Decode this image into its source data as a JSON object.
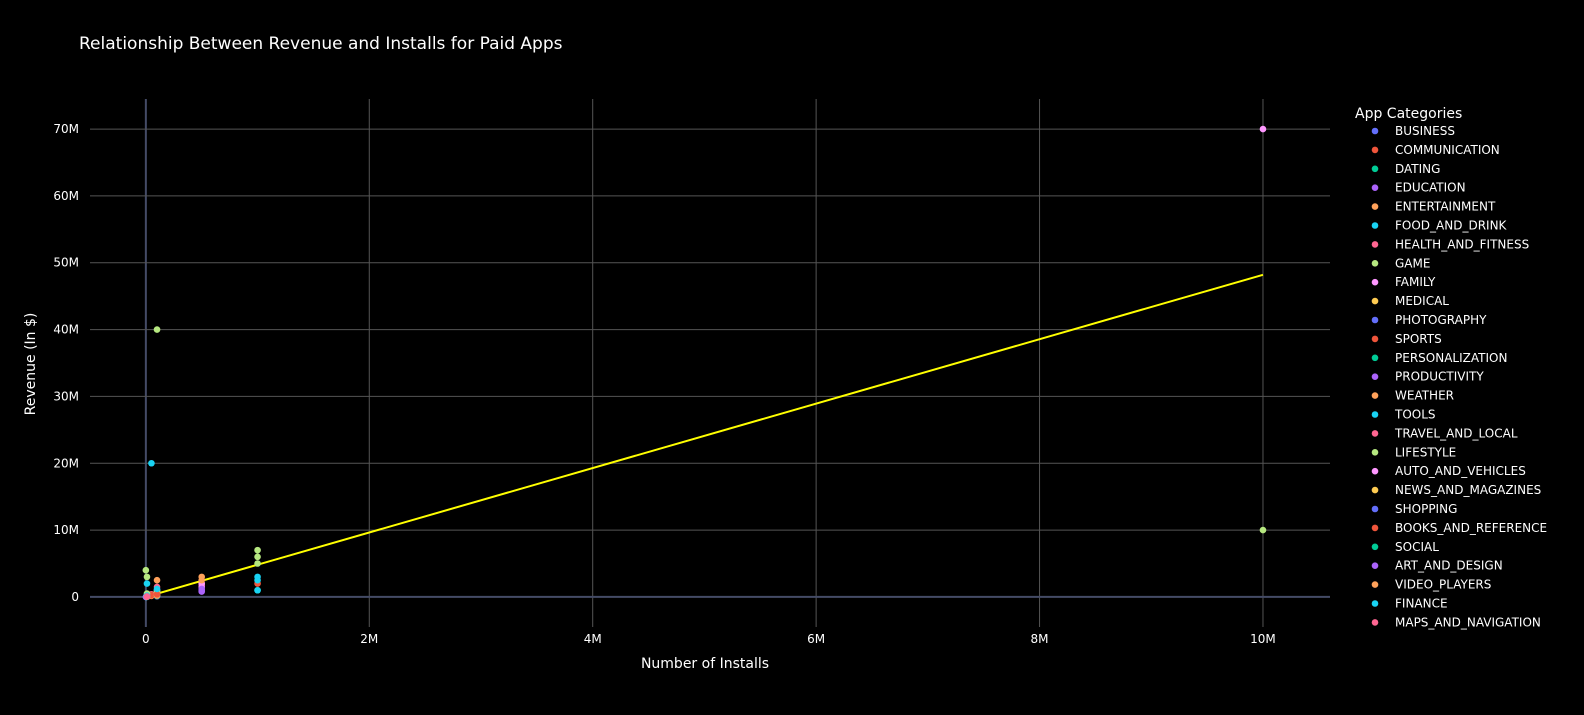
{
  "chart_data": {
    "type": "scatter",
    "title": "Relationship Between Revenue and Installs for Paid Apps",
    "xlabel": "Number of Installs",
    "ylabel": "Revenue (In $)",
    "xlim": [
      -500000,
      10600000
    ],
    "ylim": [
      -4500000,
      74500000
    ],
    "x_ticks": [
      {
        "value": 0,
        "label": "0"
      },
      {
        "value": 2000000,
        "label": "2M"
      },
      {
        "value": 4000000,
        "label": "4M"
      },
      {
        "value": 6000000,
        "label": "6M"
      },
      {
        "value": 8000000,
        "label": "8M"
      },
      {
        "value": 10000000,
        "label": "10M"
      }
    ],
    "y_ticks": [
      {
        "value": 0,
        "label": "0"
      },
      {
        "value": 10000000,
        "label": "10M"
      },
      {
        "value": 20000000,
        "label": "20M"
      },
      {
        "value": 30000000,
        "label": "30M"
      },
      {
        "value": 40000000,
        "label": "40M"
      },
      {
        "value": 50000000,
        "label": "50M"
      },
      {
        "value": 60000000,
        "label": "60M"
      },
      {
        "value": 70000000,
        "label": "70M"
      }
    ],
    "grid": true,
    "legend_title": "App Categories",
    "legend_position": "right",
    "background": "#000000",
    "grid_color": "#555555",
    "trendline": {
      "color": "#ffff00",
      "x": [
        0,
        10000000
      ],
      "y": [
        0,
        48200000
      ]
    },
    "series": [
      {
        "name": "BUSINESS",
        "color": "#636efa",
        "points": [
          [
            1000,
            5000
          ],
          [
            10000,
            40000
          ],
          [
            100000,
            300000
          ]
        ]
      },
      {
        "name": "COMMUNICATION",
        "color": "#ef553b",
        "points": [
          [
            10000,
            30000
          ],
          [
            50000,
            150000
          ],
          [
            100000,
            500000
          ]
        ]
      },
      {
        "name": "DATING",
        "color": "#00cc96",
        "points": [
          [
            1000,
            3000
          ],
          [
            10000,
            50000
          ]
        ]
      },
      {
        "name": "EDUCATION",
        "color": "#ab63fa",
        "points": [
          [
            10000,
            40000
          ],
          [
            100000,
            200000
          ],
          [
            500000,
            1000000
          ]
        ]
      },
      {
        "name": "ENTERTAINMENT",
        "color": "#ffa15a",
        "points": [
          [
            100000,
            2500000
          ],
          [
            500000,
            3000000
          ]
        ]
      },
      {
        "name": "FOOD_AND_DRINK",
        "color": "#19d3f3",
        "points": [
          [
            10000,
            20000
          ],
          [
            100000,
            300000
          ]
        ]
      },
      {
        "name": "HEALTH_AND_FITNESS",
        "color": "#ff6692",
        "points": [
          [
            50000,
            400000
          ],
          [
            100000,
            1500000
          ],
          [
            500000,
            1800000
          ]
        ]
      },
      {
        "name": "GAME",
        "color": "#b6e880",
        "points": [
          [
            0,
            4000000
          ],
          [
            10000,
            3000000
          ],
          [
            100000,
            40000000
          ],
          [
            1000000,
            7000000
          ],
          [
            1000000,
            6000000
          ],
          [
            1000000,
            5000000
          ],
          [
            10000000,
            10000000
          ]
        ]
      },
      {
        "name": "FAMILY",
        "color": "#ff97ff",
        "points": [
          [
            100000,
            1000000
          ],
          [
            500000,
            1500000
          ],
          [
            500000,
            2000000
          ],
          [
            10000000,
            70000000
          ]
        ]
      },
      {
        "name": "MEDICAL",
        "color": "#fecb52",
        "points": [
          [
            10000,
            100000
          ],
          [
            50000,
            250000
          ],
          [
            100000,
            800000
          ]
        ]
      },
      {
        "name": "PHOTOGRAPHY",
        "color": "#636efa",
        "points": [
          [
            10000,
            150000
          ],
          [
            100000,
            100000
          ]
        ]
      },
      {
        "name": "SPORTS",
        "color": "#ef553b",
        "points": [
          [
            50000,
            300000
          ],
          [
            1000000,
            2000000
          ]
        ]
      },
      {
        "name": "PERSONALIZATION",
        "color": "#00cc96",
        "points": [
          [
            10000,
            10000
          ],
          [
            100000,
            150000
          ],
          [
            1000000,
            1000000
          ]
        ]
      },
      {
        "name": "PRODUCTIVITY",
        "color": "#ab63fa",
        "points": [
          [
            100000,
            600000
          ],
          [
            500000,
            800000
          ],
          [
            500000,
            1200000
          ]
        ]
      },
      {
        "name": "WEATHER",
        "color": "#ffa15a",
        "points": [
          [
            100000,
            200000
          ],
          [
            500000,
            2500000
          ]
        ]
      },
      {
        "name": "TOOLS",
        "color": "#19d3f3",
        "points": [
          [
            10000,
            2000000
          ],
          [
            100000,
            1000000
          ],
          [
            1000000,
            3000000
          ],
          [
            1000000,
            2500000
          ]
        ]
      },
      {
        "name": "TRAVEL_AND_LOCAL",
        "color": "#ff6692",
        "points": [
          [
            10000,
            50000
          ],
          [
            100000,
            500000
          ]
        ]
      },
      {
        "name": "LIFESTYLE",
        "color": "#b6e880",
        "points": [
          [
            10000,
            500000
          ],
          [
            100000,
            700000
          ]
        ]
      },
      {
        "name": "AUTO_AND_VEHICLES",
        "color": "#ff97ff",
        "points": [
          [
            10000,
            20000
          ]
        ]
      },
      {
        "name": "NEWS_AND_MAGAZINES",
        "color": "#fecb52",
        "points": [
          [
            10000,
            60000
          ]
        ]
      },
      {
        "name": "SHOPPING",
        "color": "#636efa",
        "points": [
          [
            10000,
            80000
          ]
        ]
      },
      {
        "name": "BOOKS_AND_REFERENCE",
        "color": "#ef553b",
        "points": [
          [
            10000,
            100000
          ],
          [
            100000,
            400000
          ]
        ]
      },
      {
        "name": "SOCIAL",
        "color": "#00cc96",
        "points": [
          [
            1000,
            2000
          ],
          [
            10000,
            30000
          ]
        ]
      },
      {
        "name": "ART_AND_DESIGN",
        "color": "#ab63fa",
        "points": [
          [
            1000,
            5000
          ]
        ]
      },
      {
        "name": "VIDEO_PLAYERS",
        "color": "#ffa15a",
        "points": [
          [
            10000,
            40000
          ]
        ]
      },
      {
        "name": "FINANCE",
        "color": "#19d3f3",
        "points": [
          [
            50000,
            20000000
          ],
          [
            10000,
            200000
          ],
          [
            100000,
            1200000
          ],
          [
            1000000,
            1000000
          ]
        ]
      },
      {
        "name": "MAPS_AND_NAVIGATION",
        "color": "#ff6692",
        "points": [
          [
            10000,
            70000
          ]
        ]
      }
    ]
  }
}
